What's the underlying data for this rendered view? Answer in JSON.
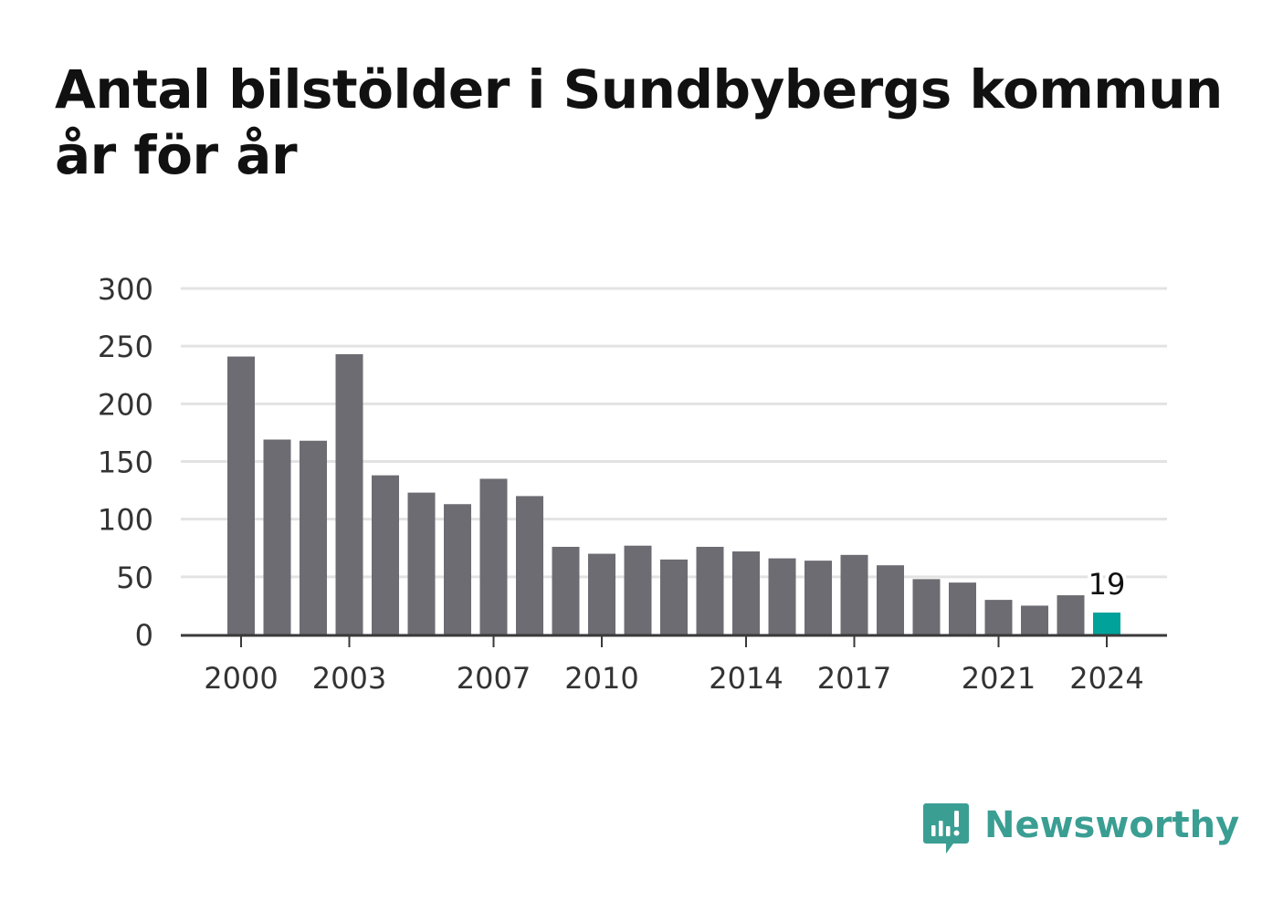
{
  "title": "Antal bilstölder i Sundbybergs kommun år för år",
  "brand": {
    "name": "Newsworthy",
    "color": "#3b9e93",
    "icon": "bar-chart-speech-bubble-icon"
  },
  "colors": {
    "bar": "#6d6c72",
    "highlight": "#00a29a",
    "grid": "#e3e3e3",
    "axis": "#3a3a3a",
    "text": "#333333"
  },
  "chart_data": {
    "type": "bar",
    "title": "Antal bilstölder i Sundbybergs kommun år för år",
    "xlabel": "",
    "ylabel": "",
    "categories": [
      2000,
      2001,
      2002,
      2003,
      2004,
      2005,
      2006,
      2007,
      2008,
      2009,
      2010,
      2011,
      2012,
      2013,
      2014,
      2015,
      2016,
      2017,
      2018,
      2019,
      2020,
      2021,
      2022,
      2023,
      2024
    ],
    "values": [
      241,
      169,
      168,
      243,
      138,
      123,
      113,
      135,
      120,
      76,
      70,
      77,
      65,
      76,
      72,
      66,
      64,
      69,
      60,
      48,
      45,
      30,
      25,
      34,
      19
    ],
    "ylim": [
      0,
      300
    ],
    "yticks": [
      0,
      50,
      100,
      150,
      200,
      250,
      300
    ],
    "xticks": [
      2000,
      2003,
      2007,
      2010,
      2014,
      2017,
      2021,
      2024
    ],
    "highlight_category": 2024,
    "data_labels": [
      {
        "category": 2024,
        "text": "19"
      }
    ],
    "grid": true,
    "legend": "none"
  }
}
